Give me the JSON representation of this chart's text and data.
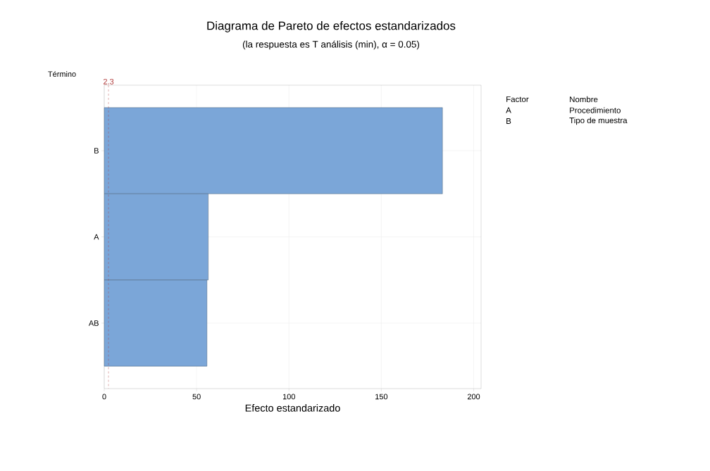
{
  "chart_data": {
    "type": "bar",
    "orientation": "horizontal",
    "title": "Diagrama de Pareto de efectos estandarizados",
    "subtitle": "(la respuesta es T análisis (min), α = 0.05)",
    "xlabel": "Efecto estandarizado",
    "ylabel": "Término",
    "categories": [
      "B",
      "A",
      "AB"
    ],
    "values": [
      183.1,
      56.3,
      55.6
    ],
    "color": "#7ba6d8",
    "xlim": [
      0,
      204
    ],
    "xticks": [
      0,
      50,
      100,
      150,
      200
    ],
    "grid": true,
    "ref_lines": [
      {
        "axis": "x",
        "value": 2.3,
        "label": "2.3",
        "color": "#b03a3a",
        "line_style": "dashed"
      }
    ],
    "annotations": [
      "Factor",
      "Nombre",
      "A",
      "Procedimiento",
      "B",
      "Tipo de muestra"
    ]
  }
}
